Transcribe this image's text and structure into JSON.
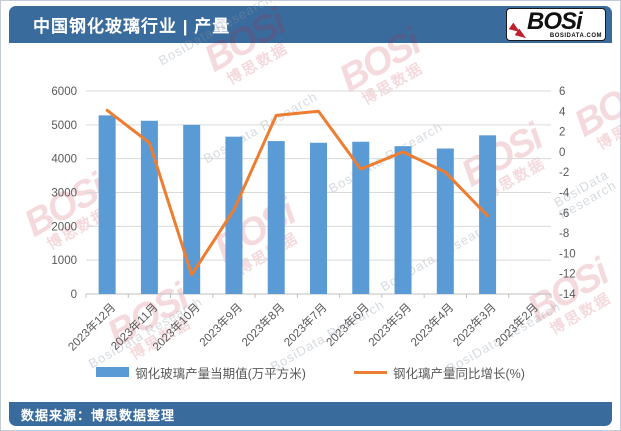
{
  "header": {
    "title": "中国钢化玻璃行业 | 产量",
    "logo": {
      "brand": "BOSi",
      "site": "BOSIDATA.COM"
    }
  },
  "footer": {
    "source": "数据来源：博思数据整理"
  },
  "watermark": {
    "brand": "BOSi",
    "cn": "博思数据",
    "en": "BosiData Research"
  },
  "colors": {
    "header_bg": "#3a6b9d",
    "bar": "#5b9bd5",
    "line": "#ed7d31",
    "grid": "#d9d9d9",
    "axis_line": "#bfbfbf",
    "axis_text": "#595959",
    "watermark_red": "#c0212e"
  },
  "chart_data": {
    "type": "bar",
    "subtype": "bar-line-combo",
    "categories": [
      "2023年12月",
      "2023年11月",
      "2023年10月",
      "2023年9月",
      "2023年8月",
      "2023年7月",
      "2023年6月",
      "2023年5月",
      "2023年4月",
      "2023年3月",
      "2023年2月"
    ],
    "series": [
      {
        "name": "钢化玻璃产量当期值(万平方米)",
        "type": "bar",
        "axis": "left",
        "color": "#5b9bd5",
        "values": [
          5280,
          5120,
          5000,
          4650,
          4520,
          4470,
          4500,
          4370,
          4300,
          4690,
          null
        ]
      },
      {
        "name": "钢化璃产量同比增长(%)",
        "type": "line",
        "axis": "right",
        "color": "#ed7d31",
        "values": [
          4.1,
          0.9,
          -12.1,
          -5.7,
          3.6,
          4.0,
          -1.7,
          0.0,
          -2.0,
          -6.3,
          null
        ]
      }
    ],
    "left_axis": {
      "min": 0,
      "max": 6000,
      "step": 1000
    },
    "right_axis": {
      "min": -14,
      "max": 6,
      "step": 2
    },
    "grid": true,
    "legend_position": "bottom"
  }
}
